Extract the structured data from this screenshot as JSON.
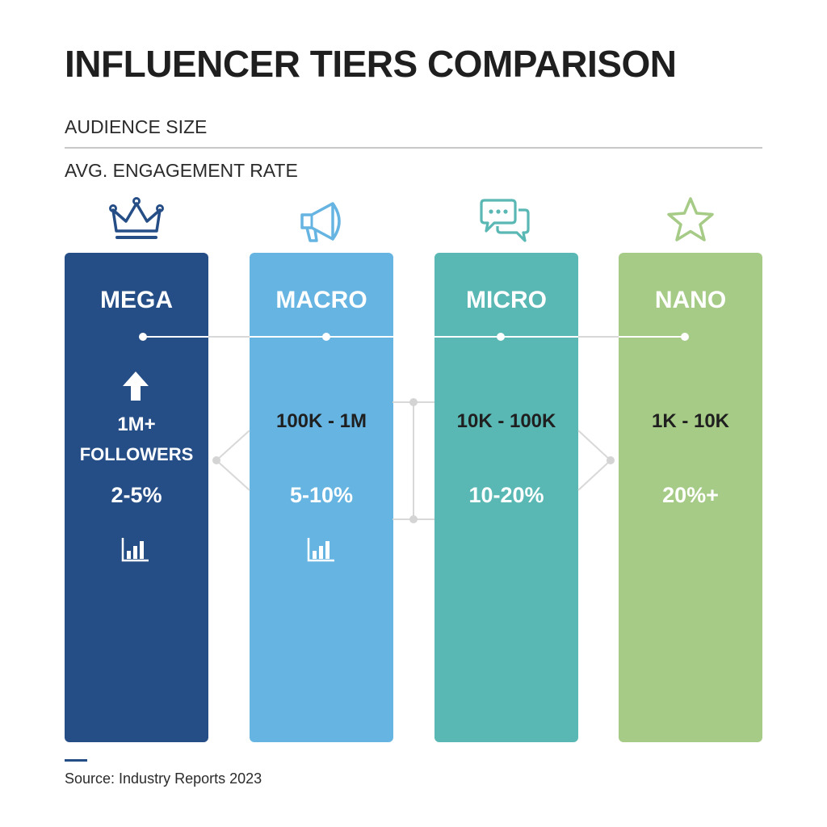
{
  "title": "INFLUENCER TIERS COMPARISON",
  "legend": {
    "audience_label": "AUDIENCE SIZE",
    "engagement_label": "AVG. ENGAGEMENT RATE"
  },
  "colors": {
    "mega": "#254d86",
    "macro": "#66b4e2",
    "micro": "#59b8b4",
    "nano": "#a6cb86",
    "connector": "#d4d4d4"
  },
  "tiers": [
    {
      "name": "MEGA",
      "icon": "crown-icon",
      "audience": "1M+",
      "audience_sub": "FOLLOWERS",
      "rate": "2-5%",
      "has_arrow": true,
      "has_chart_icon": true
    },
    {
      "name": "MACRO",
      "icon": "megaphone-icon",
      "audience": "100K - 1M",
      "rate": "5-10%",
      "has_chart_icon": true
    },
    {
      "name": "MICRO",
      "icon": "chat-bubbles-icon",
      "audience": "10K - 100K",
      "rate": "10-20%"
    },
    {
      "name": "NANO",
      "icon": "star-icon",
      "audience": "1K - 10K",
      "rate": "20%+"
    }
  ],
  "source": "Source: Industry Reports 2023"
}
